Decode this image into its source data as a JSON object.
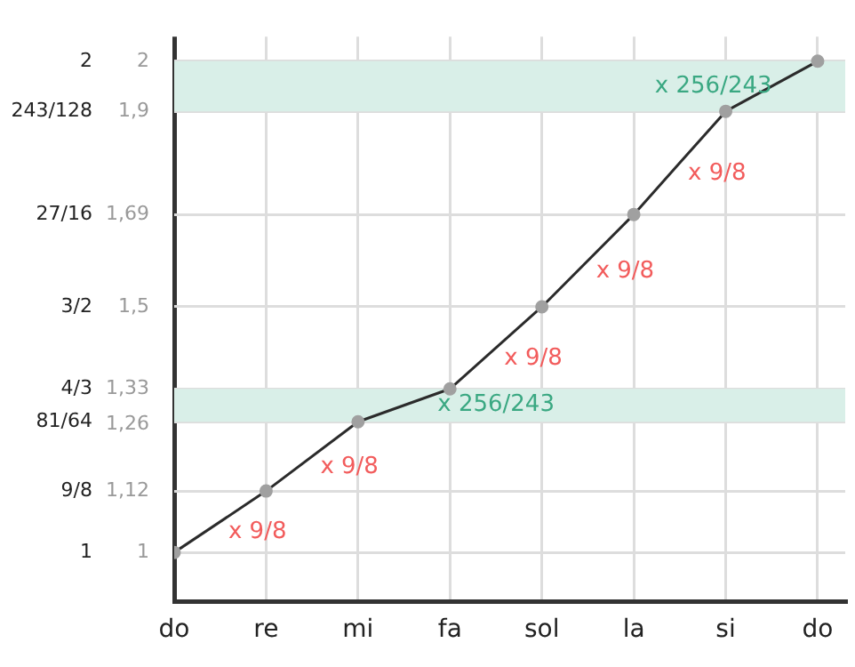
{
  "chart_data": {
    "type": "line",
    "categories": [
      "do",
      "re",
      "mi",
      "fa",
      "sol",
      "la",
      "si",
      "do"
    ],
    "series": [
      {
        "color": "#2b2b2b",
        "values": [
          1,
          1.125,
          1.266,
          1.333,
          1.5,
          1.688,
          1.898,
          2
        ]
      }
    ],
    "ylim": [
      0.9,
      2.05
    ],
    "yticks": [
      1,
      {
        "value": 1.125,
        "label": "9/8"
      },
      {
        "value": 1.266,
        "label": "81/64"
      },
      {
        "value": 1.333,
        "label": "4/3"
      },
      {
        "value": 1.5,
        "label": "3/2"
      },
      {
        "value": 1.688,
        "label": "27/16"
      },
      {
        "value": 1.898,
        "label": "243/128"
      },
      2
    ],
    "y2lim": [
      0.9,
      2.05
    ],
    "y2ticks": [
      1,
      {
        "value": 1.125,
        "label": "1,12"
      },
      {
        "value": 1.26,
        "label": "1,26"
      },
      {
        "value": 1.333,
        "label": "1,33"
      },
      {
        "value": 1.5,
        "label": "1,5"
      },
      {
        "value": 1.688,
        "label": "1,69"
      },
      {
        "value": 1.898,
        "label": "1,9"
      },
      2
    ],
    "bands": [
      {
        "axis": "y",
        "from": 1.266,
        "to": 1.333,
        "color": "#d9efe8"
      },
      {
        "axis": "y",
        "from": 1.898,
        "to": 2,
        "color": "#d9efe8"
      }
    ],
    "annotations": [
      "x 9/8",
      "x 9/8",
      "x 256/243",
      "x 9/8",
      "x 9/8",
      "x 9/8",
      "x 256/243"
    ],
    "grid": true,
    "marker": "circle",
    "line_style": "solid",
    "legend": false
  }
}
